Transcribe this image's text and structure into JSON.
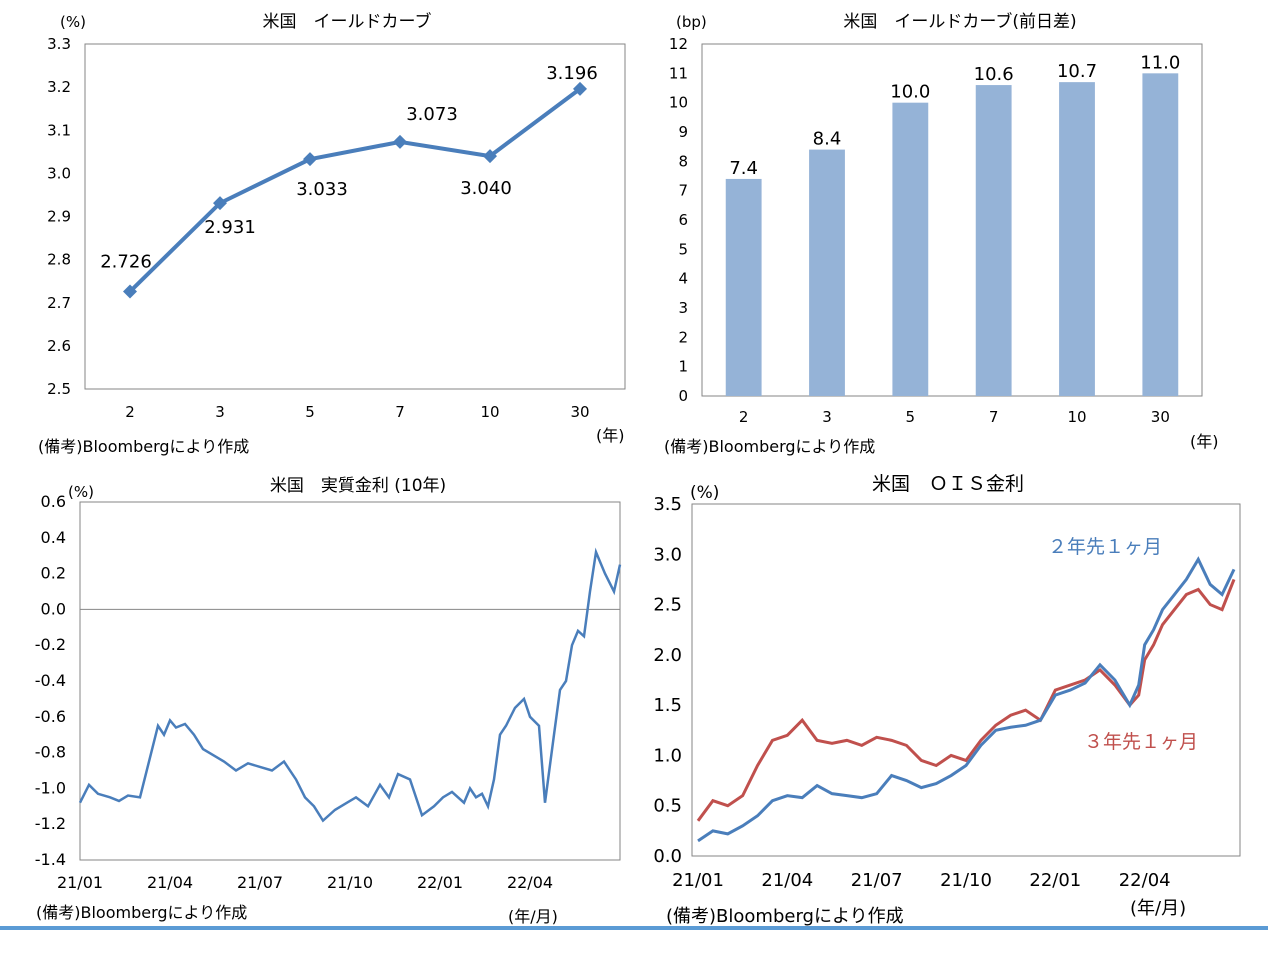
{
  "colors": {
    "line_blue": "#4a7ebb",
    "bar_blue": "#95b3d7",
    "line_red": "#c0504d",
    "axis": "#868686",
    "rule_blue": "#5b9bd5"
  },
  "chart_data": [
    {
      "type": "line",
      "title": "米国　イールドカーブ",
      "unit_label": "(%)",
      "x_unit_label": "(年)",
      "source": "(備考)Bloombergにより作成",
      "categories": [
        "2",
        "3",
        "5",
        "7",
        "10",
        "30"
      ],
      "values": [
        2.726,
        2.931,
        3.033,
        3.073,
        3.04,
        3.196
      ],
      "value_labels": [
        "2.726",
        "2.931",
        "3.033",
        "3.073",
        "3.040",
        "3.196"
      ],
      "ylim": [
        2.5,
        3.3
      ],
      "yticks": [
        "3.3",
        "3.2",
        "3.1",
        "3.0",
        "2.9",
        "2.8",
        "2.7",
        "2.6",
        "2.5"
      ],
      "marker": "diamond",
      "grid": false
    },
    {
      "type": "bar",
      "title": "米国　イールドカーブ(前日差)",
      "unit_label": "(bp)",
      "x_unit_label": "(年)",
      "source": "(備考)Bloombergにより作成",
      "categories": [
        "2",
        "3",
        "5",
        "7",
        "10",
        "30"
      ],
      "values": [
        7.4,
        8.4,
        10.0,
        10.6,
        10.7,
        11.0
      ],
      "value_labels": [
        "7.4",
        "8.4",
        "10.0",
        "10.6",
        "10.7",
        "11.0"
      ],
      "ylim": [
        0,
        12
      ],
      "yticks": [
        "12",
        "11",
        "10",
        "9",
        "8",
        "7",
        "6",
        "5",
        "4",
        "3",
        "2",
        "1",
        "0"
      ],
      "grid": false
    },
    {
      "type": "line",
      "title": "米国　実質金利 (10年)",
      "unit_label": "(%)",
      "x_unit_label": "(年/月)",
      "source": "(備考)Bloombergにより作成",
      "xticks": [
        "21/01",
        "21/04",
        "21/07",
        "21/10",
        "22/01",
        "22/04"
      ],
      "ylim": [
        -1.4,
        0.6
      ],
      "yticks": [
        "0.6",
        "0.4",
        "0.2",
        "0.0",
        "-0.2",
        "-0.4",
        "-0.6",
        "-0.8",
        "-1.0",
        "-1.2",
        "-1.4"
      ],
      "x_range_months": [
        0,
        18
      ],
      "series": [
        {
          "name": "実質金利(10年)",
          "x": [
            0,
            0.3,
            0.6,
            1.0,
            1.3,
            1.6,
            2.0,
            2.3,
            2.6,
            2.8,
            3.0,
            3.2,
            3.5,
            3.8,
            4.1,
            4.5,
            4.8,
            5.2,
            5.6,
            6.0,
            6.4,
            6.8,
            7.2,
            7.5,
            7.8,
            8.1,
            8.5,
            8.9,
            9.2,
            9.6,
            10.0,
            10.3,
            10.6,
            11.0,
            11.4,
            11.8,
            12.1,
            12.4,
            12.8,
            13.0,
            13.2,
            13.4,
            13.6,
            13.8,
            14.0,
            14.2,
            14.5,
            14.8,
            15.0,
            15.3,
            15.5,
            15.8,
            16.0,
            16.2,
            16.4,
            16.6,
            16.8,
            17.0,
            17.2,
            17.5,
            17.8,
            18.0
          ],
          "values": [
            -1.08,
            -0.98,
            -1.03,
            -1.05,
            -1.07,
            -1.04,
            -1.05,
            -0.85,
            -0.65,
            -0.7,
            -0.62,
            -0.66,
            -0.64,
            -0.7,
            -0.78,
            -0.82,
            -0.85,
            -0.9,
            -0.86,
            -0.88,
            -0.9,
            -0.85,
            -0.95,
            -1.05,
            -1.1,
            -1.18,
            -1.12,
            -1.08,
            -1.05,
            -1.1,
            -0.98,
            -1.05,
            -0.92,
            -0.95,
            -1.15,
            -1.1,
            -1.05,
            -1.02,
            -1.08,
            -1.0,
            -1.05,
            -1.03,
            -1.1,
            -0.95,
            -0.7,
            -0.65,
            -0.55,
            -0.5,
            -0.6,
            -0.65,
            -1.08,
            -0.7,
            -0.45,
            -0.4,
            -0.2,
            -0.12,
            -0.15,
            0.1,
            0.32,
            0.2,
            0.1,
            0.25
          ]
        }
      ],
      "grid": false
    },
    {
      "type": "line",
      "title": "米国　ＯＩＳ金利",
      "unit_label": "(%)",
      "x_unit_label": "(年/月)",
      "source": "(備考)Bloombergにより作成",
      "xticks": [
        "21/01",
        "21/04",
        "21/07",
        "21/10",
        "22/01",
        "22/04"
      ],
      "ylim": [
        0,
        3.5
      ],
      "yticks": [
        "3.5",
        "3.0",
        "2.5",
        "2.0",
        "1.5",
        "1.0",
        "0.5",
        "0.0"
      ],
      "x_range_months": [
        0,
        18
      ],
      "series": [
        {
          "name": "２年先１ヶ月",
          "color_key": "line_blue",
          "x": [
            0,
            0.5,
            1.0,
            1.5,
            2.0,
            2.5,
            3.0,
            3.5,
            4.0,
            4.5,
            5.0,
            5.5,
            6.0,
            6.5,
            7.0,
            7.5,
            8.0,
            8.5,
            9.0,
            9.5,
            10.0,
            10.5,
            11.0,
            11.5,
            12.0,
            12.5,
            13.0,
            13.5,
            14.0,
            14.5,
            14.8,
            15.0,
            15.3,
            15.6,
            16.0,
            16.4,
            16.8,
            17.2,
            17.6,
            18.0
          ],
          "values": [
            0.15,
            0.25,
            0.22,
            0.3,
            0.4,
            0.55,
            0.6,
            0.58,
            0.7,
            0.62,
            0.6,
            0.58,
            0.62,
            0.8,
            0.75,
            0.68,
            0.72,
            0.8,
            0.9,
            1.1,
            1.25,
            1.28,
            1.3,
            1.35,
            1.6,
            1.65,
            1.72,
            1.9,
            1.75,
            1.5,
            1.7,
            2.1,
            2.25,
            2.45,
            2.6,
            2.75,
            2.95,
            2.7,
            2.6,
            2.85
          ]
        },
        {
          "name": "３年先１ヶ月",
          "color_key": "line_red",
          "x": [
            0,
            0.5,
            1.0,
            1.5,
            2.0,
            2.5,
            3.0,
            3.5,
            4.0,
            4.5,
            5.0,
            5.5,
            6.0,
            6.5,
            7.0,
            7.5,
            8.0,
            8.5,
            9.0,
            9.5,
            10.0,
            10.5,
            11.0,
            11.5,
            12.0,
            12.5,
            13.0,
            13.5,
            14.0,
            14.5,
            14.8,
            15.0,
            15.3,
            15.6,
            16.0,
            16.4,
            16.8,
            17.2,
            17.6,
            18.0
          ],
          "values": [
            0.35,
            0.55,
            0.5,
            0.6,
            0.9,
            1.15,
            1.2,
            1.35,
            1.15,
            1.12,
            1.15,
            1.1,
            1.18,
            1.15,
            1.1,
            0.95,
            0.9,
            1.0,
            0.95,
            1.15,
            1.3,
            1.4,
            1.45,
            1.35,
            1.65,
            1.7,
            1.75,
            1.85,
            1.7,
            1.5,
            1.6,
            1.95,
            2.1,
            2.3,
            2.45,
            2.6,
            2.65,
            2.5,
            2.45,
            2.75
          ]
        }
      ],
      "grid": false
    }
  ]
}
